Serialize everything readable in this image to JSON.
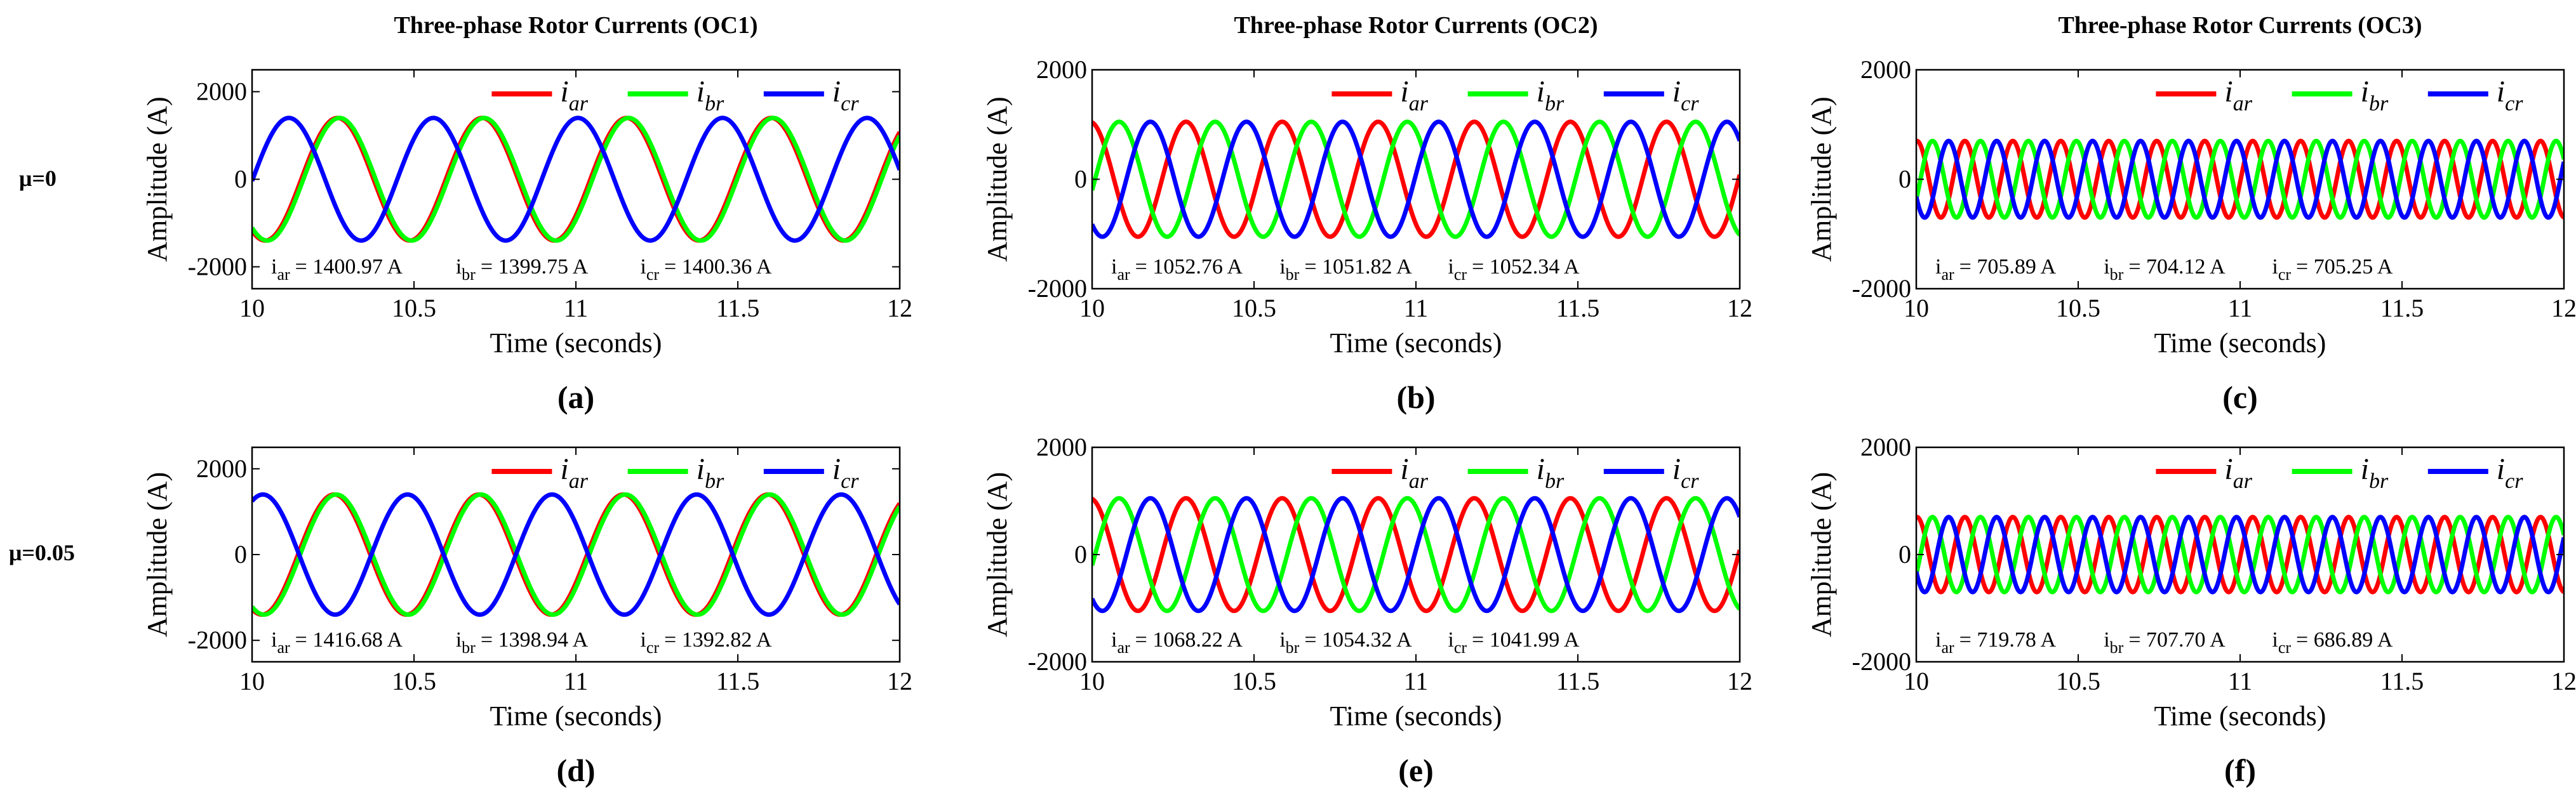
{
  "row_labels": [
    "μ=0",
    "μ=0.05"
  ],
  "colors": {
    "ar": "#ff0000",
    "br": "#00ff00",
    "cr": "#0000ff"
  },
  "chart_data": [
    {
      "type": "line",
      "label": "(a)",
      "title": "Three-phase Rotor Currents (OC1)",
      "xlabel": "Time (seconds)",
      "ylabel": "Amplitude (A)",
      "xlim": [
        10,
        12
      ],
      "ylim": [
        -2500,
        2500
      ],
      "xticks": [
        10,
        10.5,
        11,
        11.5,
        12
      ],
      "yticks": [
        -2000,
        0,
        2000
      ],
      "amplitude": 1400,
      "frequency_hz": 2.24,
      "x_at_peak": {
        "ar": 10.71,
        "br": 10.27,
        "cr": 10.56
      },
      "series": [
        {
          "key": "ar",
          "legend": "i",
          "sub": "ar",
          "rms_sub": "ar",
          "rms_value": "= 1400.97 A"
        },
        {
          "key": "br",
          "legend": "i",
          "sub": "br",
          "rms_sub": "br",
          "rms_value": "= 1399.75 A"
        },
        {
          "key": "cr",
          "legend": "i",
          "sub": "cr",
          "rms_sub": "cr",
          "rms_value": "= 1400.36 A"
        }
      ]
    },
    {
      "type": "line",
      "label": "(b)",
      "title": "Three-phase Rotor Currents (OC2)",
      "xlabel": "Time (seconds)",
      "ylabel": "Amplitude (A)",
      "xlim": [
        10,
        12
      ],
      "ylim": [
        -2000,
        2000
      ],
      "xticks": [
        10,
        10.5,
        11,
        11.5,
        12
      ],
      "yticks": [
        -2000,
        0,
        2000
      ],
      "amplitude": 1050,
      "frequency_hz": 3.37,
      "x_at_peak": {
        "ar": 10.29,
        "br": 10.38,
        "cr": 10.18
      },
      "series": [
        {
          "key": "ar",
          "legend": "i",
          "sub": "ar",
          "rms_sub": "ar",
          "rms_value": "= 1052.76 A"
        },
        {
          "key": "br",
          "legend": "i",
          "sub": "br",
          "rms_sub": "br",
          "rms_value": "= 1051.82 A"
        },
        {
          "key": "cr",
          "legend": "i",
          "sub": "cr",
          "rms_sub": "cr",
          "rms_value": "= 1052.34 A"
        }
      ]
    },
    {
      "type": "line",
      "label": "(c)",
      "title": "Three-phase Rotor Currents (OC3)",
      "xlabel": "Time (seconds)",
      "ylabel": "Amplitude (A)",
      "xlim": [
        10,
        12
      ],
      "ylim": [
        -2000,
        2000
      ],
      "xticks": [
        10,
        10.5,
        11,
        11.5,
        12
      ],
      "yticks": [
        -2000,
        0,
        2000
      ],
      "amplitude": 700,
      "frequency_hz": 6.75,
      "x_at_peak": {
        "ar": 10.15,
        "br": 10.05,
        "cr": 10.1
      },
      "series": [
        {
          "key": "ar",
          "legend": "i",
          "sub": "ar",
          "rms_sub": "ar",
          "rms_value": "= 705.89 A"
        },
        {
          "key": "br",
          "legend": "i",
          "sub": "br",
          "rms_sub": "br",
          "rms_value": "= 704.12 A"
        },
        {
          "key": "cr",
          "legend": "i",
          "sub": "cr",
          "rms_sub": "cr",
          "rms_value": "= 705.25 A"
        }
      ]
    },
    {
      "type": "line",
      "label": "(d)",
      "title": "",
      "xlabel": "Time (seconds)",
      "ylabel": "Amplitude (A)",
      "xlim": [
        10,
        12
      ],
      "ylim": [
        -2500,
        2500
      ],
      "xticks": [
        10,
        10.5,
        11,
        11.5,
        12
      ],
      "yticks": [
        -2000,
        0,
        2000
      ],
      "amplitude": 1400,
      "frequency_hz": 2.24,
      "x_at_peak": {
        "ar": 10.7,
        "br": 10.26,
        "cr": 10.48
      },
      "series": [
        {
          "key": "ar",
          "legend": "i",
          "sub": "ar",
          "rms_sub": "ar",
          "rms_value": "= 1416.68 A"
        },
        {
          "key": "br",
          "legend": "i",
          "sub": "br",
          "rms_sub": "br",
          "rms_value": "= 1398.94 A"
        },
        {
          "key": "cr",
          "legend": "i",
          "sub": "cr",
          "rms_sub": "cr",
          "rms_value": "= 1392.82 A"
        }
      ]
    },
    {
      "type": "line",
      "label": "(e)",
      "title": "",
      "xlabel": "Time (seconds)",
      "ylabel": "Amplitude (A)",
      "xlim": [
        10,
        12
      ],
      "ylim": [
        -2000,
        2000
      ],
      "xticks": [
        10,
        10.5,
        11,
        11.5,
        12
      ],
      "yticks": [
        -2000,
        0,
        2000
      ],
      "amplitude": 1050,
      "frequency_hz": 3.37,
      "x_at_peak": {
        "ar": 10.29,
        "br": 10.38,
        "cr": 10.18
      },
      "series": [
        {
          "key": "ar",
          "legend": "i",
          "sub": "ar",
          "rms_sub": "ar",
          "rms_value": "= 1068.22 A"
        },
        {
          "key": "br",
          "legend": "i",
          "sub": "br",
          "rms_sub": "br",
          "rms_value": "= 1054.32 A"
        },
        {
          "key": "cr",
          "legend": "i",
          "sub": "cr",
          "rms_sub": "cr",
          "rms_value": "= 1041.99 A"
        }
      ]
    },
    {
      "type": "line",
      "label": "(f)",
      "title": "",
      "xlabel": "Time (seconds)",
      "ylabel": "Amplitude (A)",
      "xlim": [
        10,
        12
      ],
      "ylim": [
        -2000,
        2000
      ],
      "xticks": [
        10,
        10.5,
        11,
        11.5,
        12
      ],
      "yticks": [
        -2000,
        0,
        2000
      ],
      "amplitude": 700,
      "frequency_hz": 6.75,
      "x_at_peak": {
        "ar": 10.15,
        "br": 10.05,
        "cr": 10.1
      },
      "series": [
        {
          "key": "ar",
          "legend": "i",
          "sub": "ar",
          "rms_sub": "ar",
          "rms_value": "= 719.78 A"
        },
        {
          "key": "br",
          "legend": "i",
          "sub": "br",
          "rms_sub": "br",
          "rms_value": "= 707.70 A"
        },
        {
          "key": "cr",
          "legend": "i",
          "sub": "cr",
          "rms_sub": "cr",
          "rms_value": "= 686.89 A"
        }
      ]
    }
  ]
}
